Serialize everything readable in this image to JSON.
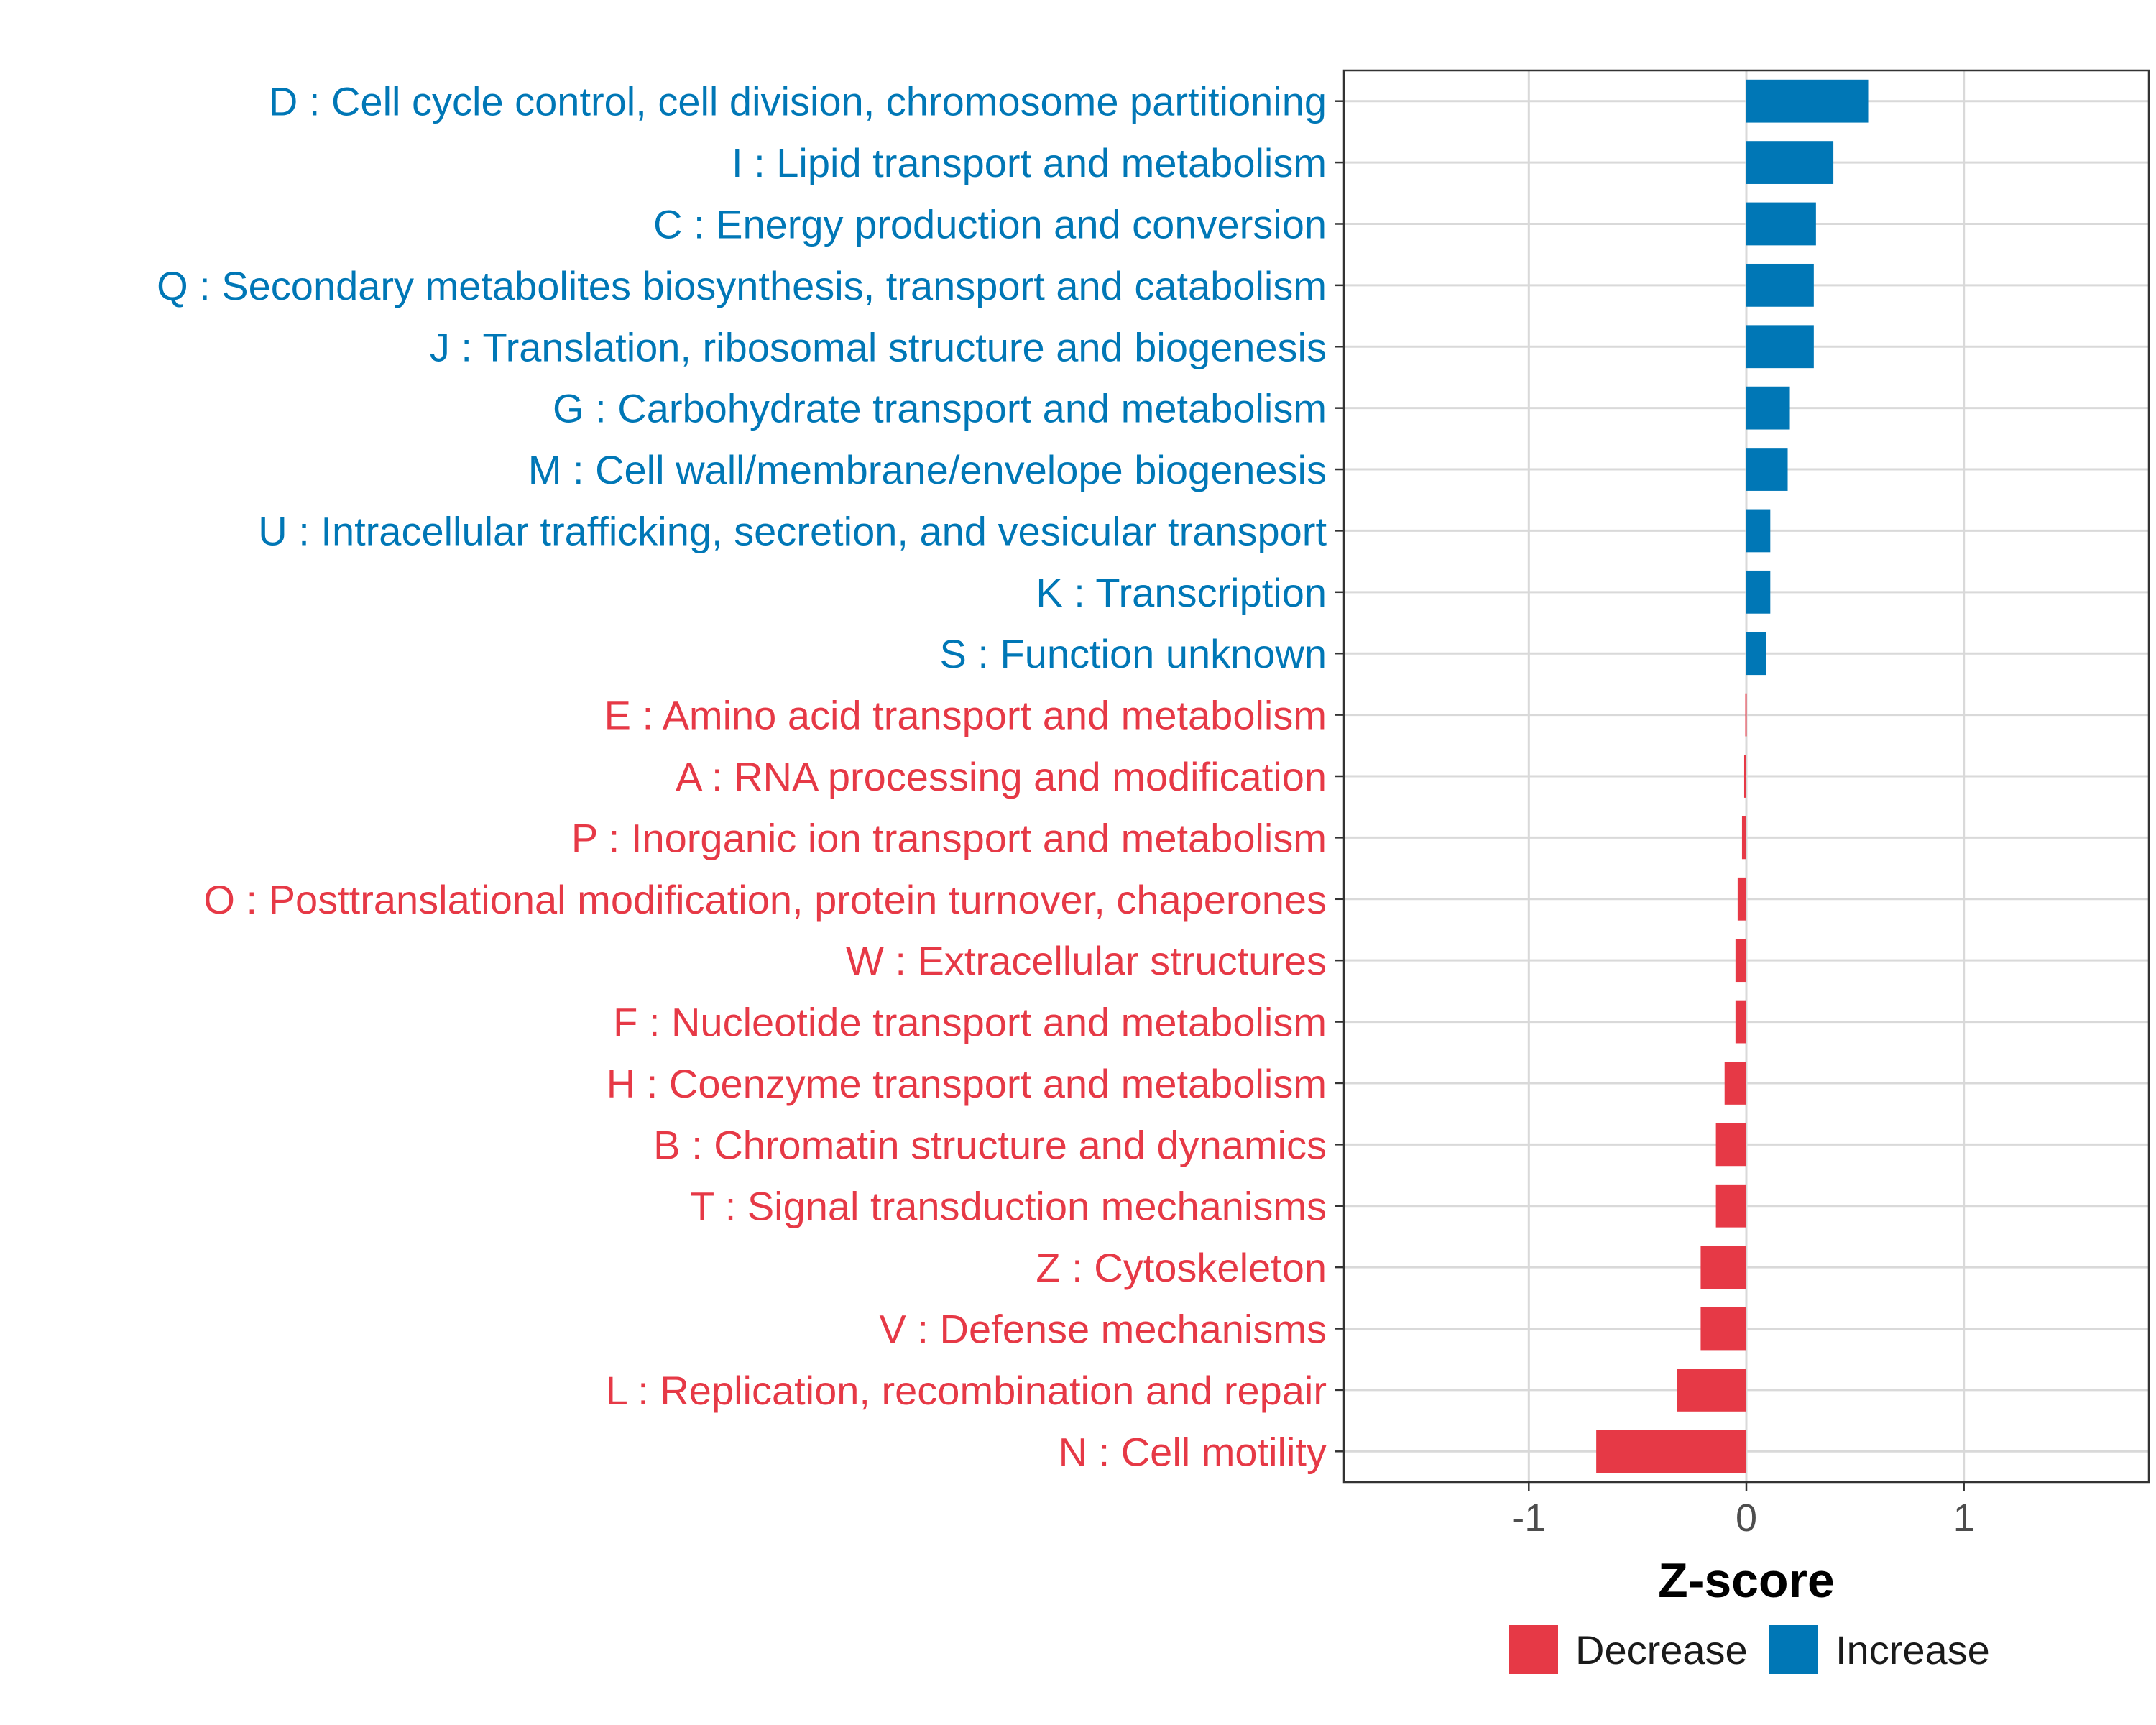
{
  "chart_data": {
    "type": "bar",
    "orientation": "horizontal",
    "title": "",
    "xlabel": "Z-score",
    "ylabel": "",
    "xlim": [
      -1.85,
      1.85
    ],
    "xticks": [
      -1,
      0,
      1
    ],
    "xtick_labels": [
      "-1",
      "0",
      "1"
    ],
    "grid": true,
    "legend_position": "bottom",
    "colors": {
      "Decrease": "#E63946",
      "Increase": "#0077B6",
      "grid": "#d9d9d9",
      "axis": "#333333"
    },
    "legend": [
      {
        "label": "Decrease",
        "color_key": "Decrease"
      },
      {
        "label": "Increase",
        "color_key": "Increase"
      }
    ],
    "categories": [
      {
        "label": "D : Cell cycle control, cell division, chromosome partitioning",
        "value": 0.56,
        "group": "Increase"
      },
      {
        "label": "I : Lipid transport and metabolism",
        "value": 0.4,
        "group": "Increase"
      },
      {
        "label": "C : Energy production and conversion",
        "value": 0.32,
        "group": "Increase"
      },
      {
        "label": "Q : Secondary metabolites biosynthesis, transport and catabolism",
        "value": 0.31,
        "group": "Increase"
      },
      {
        "label": "J : Translation, ribosomal structure and biogenesis",
        "value": 0.31,
        "group": "Increase"
      },
      {
        "label": "G : Carbohydrate transport and metabolism",
        "value": 0.2,
        "group": "Increase"
      },
      {
        "label": "M : Cell wall/membrane/envelope biogenesis",
        "value": 0.19,
        "group": "Increase"
      },
      {
        "label": "U : Intracellular trafficking, secretion, and vesicular transport",
        "value": 0.11,
        "group": "Increase"
      },
      {
        "label": "K : Transcription",
        "value": 0.11,
        "group": "Increase"
      },
      {
        "label": "S : Function unknown",
        "value": 0.09,
        "group": "Increase"
      },
      {
        "label": "E : Amino acid transport and metabolism",
        "value": -0.005,
        "group": "Decrease"
      },
      {
        "label": "A : RNA processing and modification",
        "value": -0.01,
        "group": "Decrease"
      },
      {
        "label": "P : Inorganic ion transport and metabolism",
        "value": -0.02,
        "group": "Decrease"
      },
      {
        "label": "O : Posttranslational modification, protein turnover, chaperones",
        "value": -0.04,
        "group": "Decrease"
      },
      {
        "label": "W : Extracellular structures",
        "value": -0.05,
        "group": "Decrease"
      },
      {
        "label": "F : Nucleotide transport and metabolism",
        "value": -0.05,
        "group": "Decrease"
      },
      {
        "label": "H : Coenzyme transport and metabolism",
        "value": -0.1,
        "group": "Decrease"
      },
      {
        "label": "B : Chromatin structure and dynamics",
        "value": -0.14,
        "group": "Decrease"
      },
      {
        "label": "T : Signal transduction mechanisms",
        "value": -0.14,
        "group": "Decrease"
      },
      {
        "label": "Z : Cytoskeleton",
        "value": -0.21,
        "group": "Decrease"
      },
      {
        "label": "V : Defense mechanisms",
        "value": -0.21,
        "group": "Decrease"
      },
      {
        "label": "L : Replication, recombination and repair",
        "value": -0.32,
        "group": "Decrease"
      },
      {
        "label": "N : Cell motility",
        "value": -0.69,
        "group": "Decrease"
      }
    ]
  }
}
